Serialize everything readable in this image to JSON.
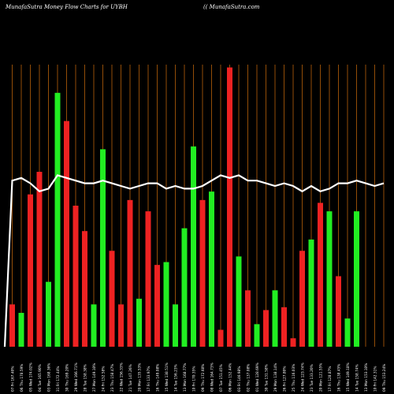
{
  "header": {
    "title": "MunafaSutra  Money Flow  Charts for UYBH",
    "watermark": "(( MunafaSutra.com"
  },
  "chart_data": {
    "type": "bar",
    "title": "MunafaSutra  Money Flow  Charts for UYBH",
    "ylim": [
      0,
      100
    ],
    "colors": {
      "up": "#22ee22",
      "down": "#ee2222",
      "line": "#ffffff",
      "grid": "#b8610a",
      "background": "#000000"
    },
    "categories": [
      "07 Fri 167.40%",
      "06 Thu 178.59%",
      "05 Wed 174.02%",
      "04 Tue 165.90%",
      "03 Mon 168.36%",
      "31 Fri 172.44%",
      "30 Thu 169.20%",
      "29 Wed 166.71%",
      "28 Tue 158.38%",
      "27 Mon 149.10%",
      "24 Fri 152.58%",
      "23 Thu 158.47%",
      "22 Wed 156.33%",
      "21 Tue 147.26%",
      "20 Mon 135.53%",
      "17 Fri 133.97%",
      "16 Thu 149.08%",
      "15 Wed 138.51%",
      "14 Tue 156.23%",
      "13 Mon 168.77%",
      "10 Fri 170.35%",
      "09 Thu 172.60%",
      "08 Wed 164.73%",
      "07 Tue 151.45%",
      "06 Mon 152.44%",
      "03 Fri 146.98%",
      "02 Thu 137.08%",
      "01 Wed 128.69%",
      "30 Tue 131.58%",
      "29 Mon 138.14%",
      "26 Fri 127.80%",
      "25 Thu 116.03%",
      "24 Wed 123.74%",
      "23 Tue 133.20%",
      "20 Mon 121.55%",
      "17 Fri 128.87%",
      "16 Thu 138.45%",
      "15 Wed 149.18%",
      "14 Tue 158.74%",
      "13 Mon 153.10%",
      "10 Fri 142.31%",
      "09 Thu 153.24%"
    ],
    "values": [
      15,
      12,
      54,
      62,
      23,
      90,
      80,
      50,
      41,
      15,
      70,
      34,
      15,
      52,
      17,
      48,
      29,
      30,
      15,
      42,
      71,
      52,
      55,
      6,
      99,
      32,
      20,
      8,
      13,
      20,
      14,
      3,
      34,
      38,
      51,
      48,
      25,
      10,
      48,
      0,
      0,
      0
    ],
    "directions": [
      "down",
      "up",
      "down",
      "down",
      "up",
      "up",
      "down",
      "down",
      "down",
      "up",
      "up",
      "down",
      "down",
      "down",
      "up",
      "down",
      "down",
      "up",
      "up",
      "up",
      "up",
      "down",
      "up",
      "down",
      "down",
      "up",
      "down",
      "up",
      "down",
      "up",
      "down",
      "down",
      "down",
      "up",
      "down",
      "up",
      "down",
      "up",
      "up",
      "up",
      "up",
      "up"
    ],
    "line": [
      62,
      63,
      61,
      58,
      59,
      64,
      63,
      62,
      61,
      61,
      62,
      61,
      60,
      59,
      60,
      61,
      61,
      59,
      60,
      59,
      59,
      60,
      62,
      64,
      63,
      64,
      62,
      62,
      61,
      60,
      61,
      60,
      58,
      60,
      58,
      59,
      61,
      61,
      62,
      61,
      60,
      61
    ]
  }
}
